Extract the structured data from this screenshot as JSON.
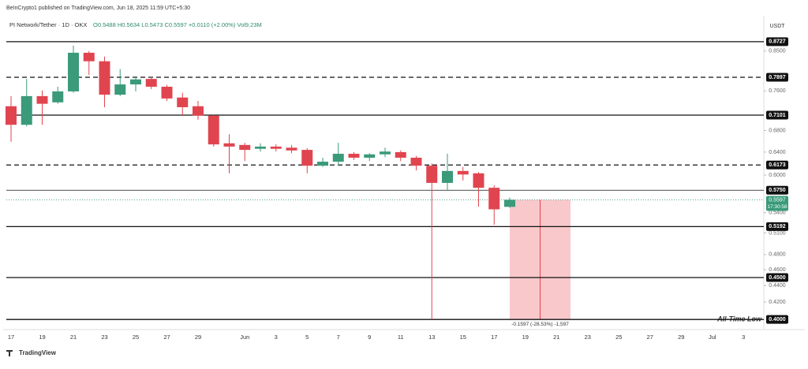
{
  "header": {
    "publisher": "BeInCrypto1 published on TradingView.com, Jun 18, 2025 11:59 UTC+5:30",
    "symbol": "PI Network/Tether · 1D · OKX",
    "ohlc_text": "O0.5488 H0.5634 L0.5473 C0.5597 +0.0110 (+2.00%) Vol9.23M"
  },
  "chart_data": {
    "type": "candlestick",
    "currency": "USDT",
    "x_labels": [
      "17",
      "19",
      "21",
      "23",
      "25",
      "27",
      "29",
      "Jun",
      "3",
      "5",
      "7",
      "9",
      "11",
      "13",
      "15",
      "17",
      "19",
      "21",
      "23",
      "25",
      "27",
      "29",
      "Jul",
      "3"
    ],
    "candles": {
      "open": [
        0.728,
        0.691,
        0.749,
        0.736,
        0.759,
        0.846,
        0.826,
        0.752,
        0.774,
        0.786,
        0.769,
        0.746,
        0.728,
        0.709,
        0.656,
        0.653,
        0.646,
        0.65,
        0.648,
        0.644,
        0.616,
        0.623,
        0.637,
        0.63,
        0.636,
        0.64,
        0.63,
        0.616,
        0.587,
        0.607,
        0.603,
        0.579,
        0.5488
      ],
      "high": [
        0.749,
        0.786,
        0.761,
        0.769,
        0.863,
        0.85,
        0.837,
        0.808,
        0.792,
        0.79,
        0.773,
        0.756,
        0.739,
        0.71,
        0.673,
        0.657,
        0.656,
        0.654,
        0.653,
        0.647,
        0.63,
        0.657,
        0.64,
        0.638,
        0.648,
        0.643,
        0.633,
        0.62,
        0.637,
        0.614,
        0.605,
        0.583,
        0.5634
      ],
      "low": [
        0.659,
        0.688,
        0.691,
        0.733,
        0.756,
        0.795,
        0.726,
        0.749,
        0.759,
        0.764,
        0.739,
        0.71,
        0.701,
        0.65,
        0.603,
        0.624,
        0.641,
        0.641,
        0.638,
        0.603,
        0.614,
        0.616,
        0.626,
        0.624,
        0.631,
        0.624,
        0.608,
        0.4,
        0.575,
        0.591,
        0.549,
        0.522,
        0.5473
      ],
      "close": [
        0.691,
        0.749,
        0.733,
        0.759,
        0.846,
        0.826,
        0.752,
        0.774,
        0.785,
        0.769,
        0.744,
        0.726,
        0.709,
        0.654,
        0.65,
        0.644,
        0.65,
        0.646,
        0.643,
        0.616,
        0.623,
        0.637,
        0.63,
        0.636,
        0.641,
        0.63,
        0.616,
        0.587,
        0.607,
        0.601,
        0.579,
        0.545,
        0.5597
      ]
    },
    "up_color": "#3a9a7a",
    "down_color": "#e0454f",
    "ylim": [
      0.394,
      0.918
    ],
    "log_scale": true,
    "yticks": [
      {
        "value": 0.85,
        "label": "0.8500"
      },
      {
        "value": 0.76,
        "label": "0.7600"
      },
      {
        "value": 0.68,
        "label": "0.6800"
      },
      {
        "value": 0.64,
        "label": "0.6400"
      },
      {
        "value": 0.6,
        "label": "0.6000"
      },
      {
        "value": 0.54,
        "label": "0.5400"
      },
      {
        "value": 0.51,
        "label": "0.5100"
      },
      {
        "value": 0.48,
        "label": "0.4800"
      },
      {
        "value": 0.46,
        "label": "0.4600"
      },
      {
        "value": 0.44,
        "label": "0.4400"
      },
      {
        "value": 0.42,
        "label": "0.4200"
      }
    ],
    "levels": [
      {
        "value": 0.8727,
        "label": "0.8727",
        "style": "solid"
      },
      {
        "value": 0.7897,
        "label": "0.7897",
        "style": "dashed"
      },
      {
        "value": 0.7101,
        "label": "0.7101",
        "style": "solid"
      },
      {
        "value": 0.6173,
        "label": "0.6173",
        "style": "dashed"
      },
      {
        "value": 0.575,
        "label": "0.5750",
        "style": "thin"
      },
      {
        "value": 0.5192,
        "label": "0.5192",
        "style": "solid"
      },
      {
        "value": 0.45,
        "label": "0.4500",
        "style": "solid"
      },
      {
        "value": 0.4,
        "label": "0.4000",
        "style": "solid"
      }
    ],
    "last_price": {
      "value": 0.5597,
      "label": "0.5597",
      "countdown": "17:30:58",
      "color": "#3a9a7a"
    },
    "measure": {
      "from": 0.5597,
      "to": 0.4,
      "label": "-0.1597 (-28.53%) -1,597",
      "color": "#f4a3a8"
    },
    "annotation": "All-Time Low"
  },
  "footer": "TradingView"
}
